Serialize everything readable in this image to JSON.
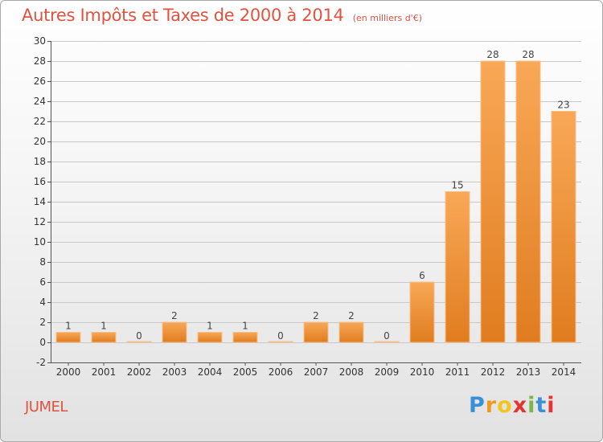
{
  "title": "Autres Impôts et Taxes de 2000 à 2014",
  "subtitle": "(en milliers d'€)",
  "commune": "JUMEL",
  "logo": {
    "text": "Proxiti",
    "letters": [
      "P",
      "r",
      "o",
      "x",
      "i",
      "t",
      "i"
    ],
    "colors": [
      "#3a8fd6",
      "#f29a1f",
      "#f2c61f",
      "#e3342f",
      "#7ab648",
      "#3a8fd6",
      "#e3342f"
    ]
  },
  "colors": {
    "bar_light": "#f9a857",
    "bar_dark": "#e07c1f",
    "title": "#e0533f"
  },
  "chart_data": {
    "type": "bar",
    "title": "Autres Impôts et Taxes de 2000 à 2014",
    "subtitle": "(en milliers d'€)",
    "xlabel": "",
    "ylabel": "",
    "categories": [
      "2000",
      "2001",
      "2002",
      "2003",
      "2004",
      "2005",
      "2006",
      "2007",
      "2008",
      "2009",
      "2010",
      "2011",
      "2012",
      "2013",
      "2014"
    ],
    "values": [
      1,
      1,
      0,
      2,
      1,
      1,
      0,
      2,
      2,
      0,
      6,
      15,
      28,
      28,
      23
    ],
    "ylim": [
      -2,
      30
    ],
    "yticks": [
      -2,
      0,
      2,
      4,
      6,
      8,
      10,
      12,
      14,
      16,
      18,
      20,
      22,
      24,
      26,
      28,
      30
    ],
    "grid": "horizontal",
    "legend": "none"
  }
}
